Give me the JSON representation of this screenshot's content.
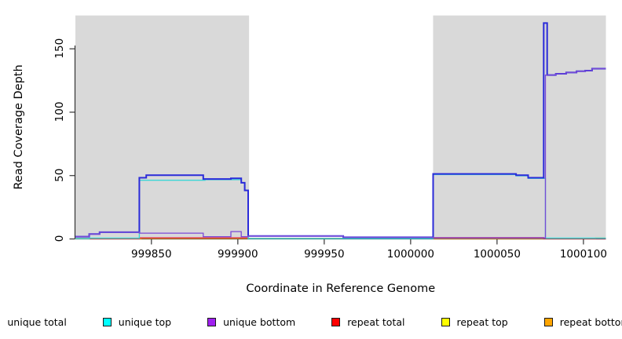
{
  "figure": {
    "background": "#ffffff"
  },
  "chart_data": {
    "type": "line",
    "step_mode": "after",
    "title": "",
    "xlabel": "Coordinate in Reference Genome",
    "ylabel": "Read Coverage Depth",
    "xlim": [
      999806,
      1000113
    ],
    "ylim": [
      0,
      176
    ],
    "x_ticks": [
      999850,
      999900,
      999950,
      1000000,
      1000050,
      1000100
    ],
    "y_ticks": [
      0,
      50,
      100,
      150
    ],
    "grid": false,
    "legend_position": "bottom",
    "masked_regions": [
      {
        "name": "masked-region-left",
        "x0": 999806,
        "x1": 999906.5,
        "color": "#d9d9d9"
      },
      {
        "name": "masked-region-right",
        "x0": 1000013,
        "x1": 1000113,
        "color": "#d9d9d9"
      }
    ],
    "series": [
      {
        "name": "repeat top",
        "color": "#FFE000",
        "width": 1.2,
        "points": [
          [
            999806,
            0
          ],
          [
            999814,
            0.1
          ],
          [
            1000113,
            0.1
          ]
        ]
      },
      {
        "name": "repeat bottom",
        "color": "#FF9412",
        "width": 1.5,
        "points": [
          [
            999806,
            0
          ],
          [
            999844,
            0.3
          ],
          [
            999906,
            0.1
          ],
          [
            1000013,
            0.05
          ],
          [
            1000107,
            0.3
          ],
          [
            1000113,
            0.3
          ]
        ]
      },
      {
        "name": "repeat total",
        "color": "#DE2D55",
        "width": 1.2,
        "points": [
          [
            999806,
            0
          ],
          [
            999843,
            0.6
          ],
          [
            999906,
            0.15
          ],
          [
            1000013,
            0.8
          ],
          [
            1000077,
            0
          ],
          [
            1000113,
            0
          ]
        ]
      },
      {
        "name": "unique top",
        "color": "#3BD6D6",
        "width": 1.4,
        "points": [
          [
            999806,
            0
          ],
          [
            999814,
            0.4
          ],
          [
            999843,
            46
          ],
          [
            999881,
            46.5
          ],
          [
            999902,
            44
          ],
          [
            999904,
            38
          ],
          [
            999906,
            0
          ],
          [
            1000013,
            50.5
          ],
          [
            1000061,
            49.5
          ],
          [
            1000068,
            47.5
          ],
          [
            1000078,
            0.4
          ],
          [
            1000113,
            0.4
          ]
        ]
      },
      {
        "name": "unique total",
        "color": "#2B2BD9",
        "width": 2,
        "points": [
          [
            999806,
            1.5
          ],
          [
            999814,
            3.5
          ],
          [
            999820,
            5
          ],
          [
            999843,
            48
          ],
          [
            999847,
            50
          ],
          [
            999880,
            47
          ],
          [
            999896,
            47.5
          ],
          [
            999902,
            44
          ],
          [
            999904,
            38
          ],
          [
            999906,
            2
          ],
          [
            999961,
            1
          ],
          [
            1000013,
            51
          ],
          [
            1000061,
            50
          ],
          [
            1000068,
            48
          ],
          [
            1000077,
            170
          ],
          [
            1000079,
            129
          ],
          [
            1000084,
            130
          ],
          [
            1000090,
            131
          ],
          [
            1000096,
            132
          ],
          [
            1000101,
            132.5
          ],
          [
            1000105,
            134
          ],
          [
            1000113,
            134
          ]
        ]
      },
      {
        "name": "unique bottom",
        "color": "#7A49D6",
        "width": 1.3,
        "points": [
          [
            999806,
            1.5
          ],
          [
            999814,
            3.5
          ],
          [
            999820,
            5
          ],
          [
            999843,
            4.3
          ],
          [
            999880,
            1.5
          ],
          [
            999896,
            5.5
          ],
          [
            999902,
            1.5
          ],
          [
            999906,
            2
          ],
          [
            999961,
            1
          ],
          [
            1000013,
            0.5
          ],
          [
            1000078,
            129
          ],
          [
            1000084,
            130
          ],
          [
            1000090,
            131
          ],
          [
            1000096,
            132
          ],
          [
            1000101,
            132.5
          ],
          [
            1000105,
            134
          ],
          [
            1000113,
            134
          ]
        ]
      }
    ]
  },
  "legend": {
    "items": [
      {
        "label": "unique total",
        "color": "#0000E0"
      },
      {
        "label": "unique top",
        "color": "#00FFFF"
      },
      {
        "label": "unique bottom",
        "color": "#A020F0"
      },
      {
        "label": "repeat total",
        "color": "#FF0000"
      },
      {
        "label": "repeat top",
        "color": "#FFFF00"
      },
      {
        "label": "repeat bottom",
        "color": "#FFA500"
      }
    ]
  }
}
